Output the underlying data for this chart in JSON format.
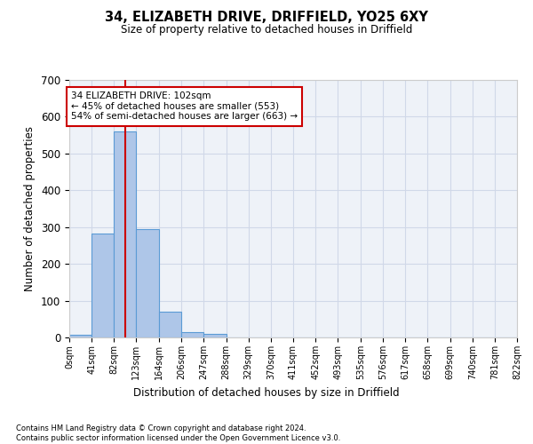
{
  "title1": "34, ELIZABETH DRIVE, DRIFFIELD, YO25 6XY",
  "title2": "Size of property relative to detached houses in Driffield",
  "xlabel": "Distribution of detached houses by size in Driffield",
  "ylabel": "Number of detached properties",
  "bin_edges": [
    0,
    41,
    82,
    123,
    164,
    206,
    247,
    288,
    329,
    370,
    411,
    452,
    493,
    535,
    576,
    617,
    658,
    699,
    740,
    781,
    822
  ],
  "bar_heights": [
    8,
    283,
    560,
    295,
    70,
    15,
    10,
    0,
    0,
    0,
    0,
    0,
    0,
    0,
    0,
    0,
    0,
    0,
    0,
    0
  ],
  "bar_color": "#aec6e8",
  "bar_edge_color": "#5b9bd5",
  "property_size": 102,
  "property_label": "34 ELIZABETH DRIVE: 102sqm",
  "annotation_line1": "← 45% of detached houses are smaller (553)",
  "annotation_line2": "54% of semi-detached houses are larger (663) →",
  "annotation_box_color": "#ffffff",
  "annotation_box_edge_color": "#cc0000",
  "vline_color": "#cc0000",
  "ylim": [
    0,
    700
  ],
  "yticks": [
    0,
    100,
    200,
    300,
    400,
    500,
    600,
    700
  ],
  "grid_color": "#d0d8e8",
  "bg_color": "#eef2f8",
  "footnote1": "Contains HM Land Registry data © Crown copyright and database right 2024.",
  "footnote2": "Contains public sector information licensed under the Open Government Licence v3.0."
}
